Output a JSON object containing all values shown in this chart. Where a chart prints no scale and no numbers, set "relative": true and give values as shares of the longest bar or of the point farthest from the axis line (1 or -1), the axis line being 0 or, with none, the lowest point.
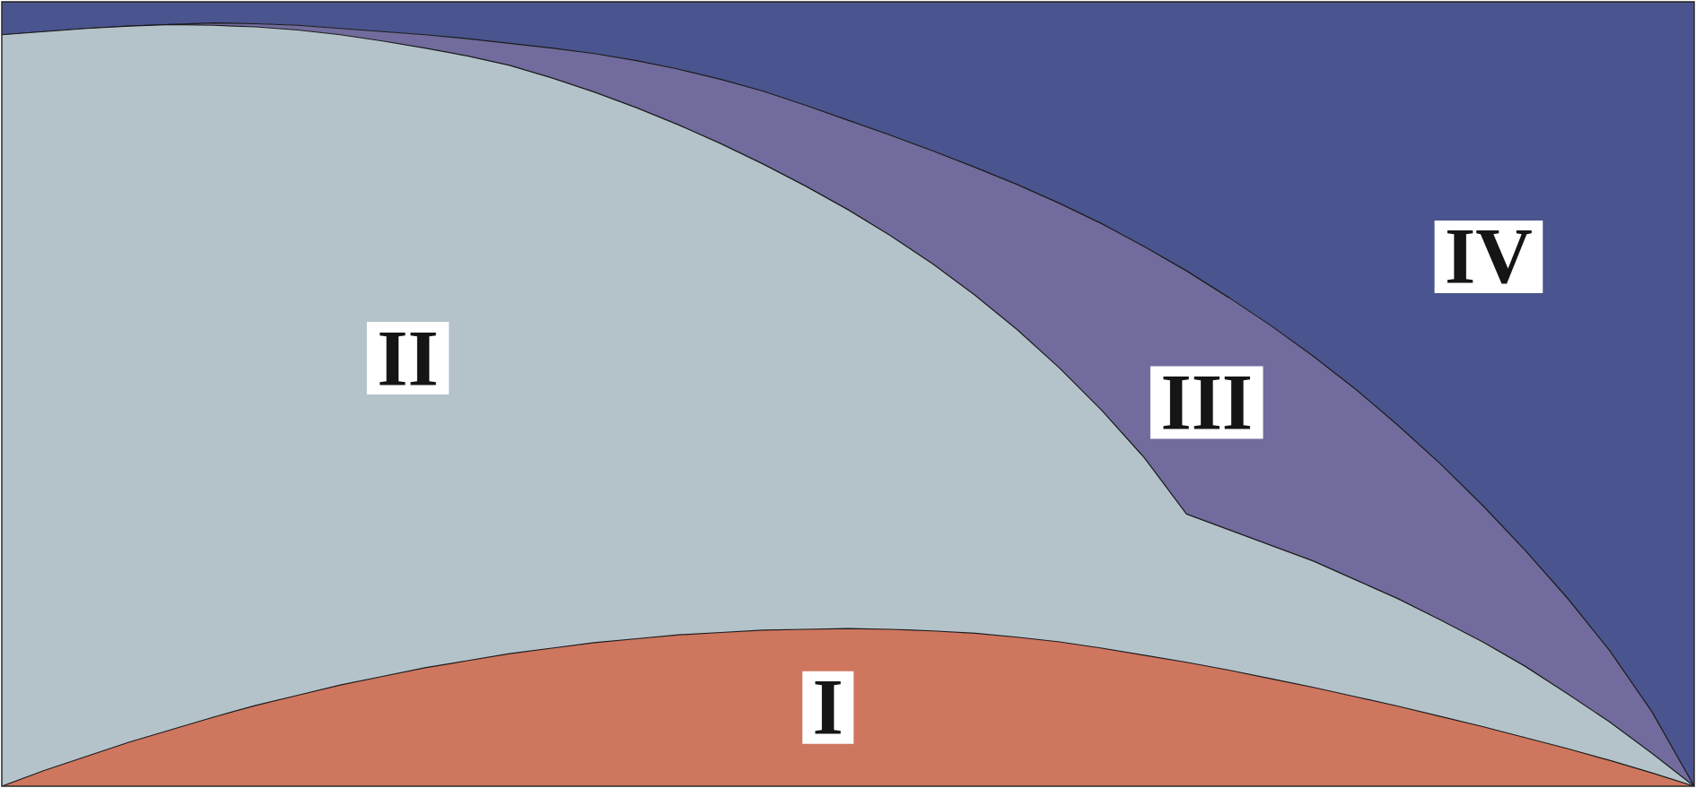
{
  "chart_data": {
    "type": "area",
    "stacked": true,
    "relative": true,
    "tick_labels": false,
    "categories": [
      null,
      null,
      null,
      null,
      null,
      null,
      null,
      null,
      null,
      null,
      null,
      null,
      null,
      null,
      null,
      null,
      null,
      null,
      null,
      null,
      null,
      null,
      null,
      null,
      null,
      null,
      null,
      null,
      null,
      null,
      null,
      null,
      null,
      null,
      null,
      null,
      null,
      null,
      null,
      null,
      null
    ],
    "series": [
      {
        "name": "I",
        "color": "#cf765f",
        "values": [
          0,
          0.02,
          0.038,
          0.056,
          0.072,
          0.088,
          0.103,
          0.116,
          0.129,
          0.14,
          0.151,
          0.16,
          0.169,
          0.176,
          0.183,
          0.188,
          0.193,
          0.196,
          0.199,
          0.2,
          0.201,
          0.2,
          0.198,
          0.195,
          0.19,
          0.184,
          0.176,
          0.167,
          0.158,
          0.148,
          0.137,
          0.126,
          0.114,
          0.102,
          0.089,
          0.076,
          0.062,
          0.048,
          0.033,
          0.017,
          0
        ]
      },
      {
        "name": "II",
        "color": "#b4c3ca",
        "values": [
          0.958,
          0.942,
          0.928,
          0.913,
          0.899,
          0.882,
          0.865,
          0.848,
          0.829,
          0.81,
          0.79,
          0.771,
          0.75,
          0.727,
          0.702,
          0.677,
          0.65,
          0.623,
          0.594,
          0.565,
          0.534,
          0.502,
          0.468,
          0.431,
          0.392,
          0.349,
          0.303,
          0.252,
          0.189,
          0.179,
          0.17,
          0.161,
          0.149,
          0.137,
          0.123,
          0.108,
          0.091,
          0.07,
          0.049,
          0.025,
          0
        ]
      },
      {
        "name": "III",
        "color": "#716c9d",
        "values": [
          0,
          0,
          0,
          0,
          0,
          0.003,
          0.004,
          0.006,
          0.008,
          0.012,
          0.017,
          0.022,
          0.028,
          0.038,
          0.049,
          0.06,
          0.071,
          0.082,
          0.093,
          0.103,
          0.114,
          0.128,
          0.144,
          0.163,
          0.185,
          0.21,
          0.238,
          0.269,
          0.31,
          0.296,
          0.28,
          0.261,
          0.243,
          0.221,
          0.199,
          0.174,
          0.148,
          0.122,
          0.091,
          0.053,
          0
        ]
      },
      {
        "name": "IV",
        "color": "#4a548e",
        "values": [
          0.042,
          0.038,
          0.034,
          0.031,
          0.029,
          0.027,
          0.028,
          0.03,
          0.034,
          0.038,
          0.042,
          0.047,
          0.053,
          0.059,
          0.066,
          0.075,
          0.086,
          0.099,
          0.114,
          0.132,
          0.151,
          0.17,
          0.19,
          0.211,
          0.233,
          0.257,
          0.283,
          0.312,
          0.343,
          0.377,
          0.413,
          0.452,
          0.494,
          0.54,
          0.589,
          0.642,
          0.699,
          0.76,
          0.827,
          0.905,
          1
        ]
      }
    ]
  }
}
